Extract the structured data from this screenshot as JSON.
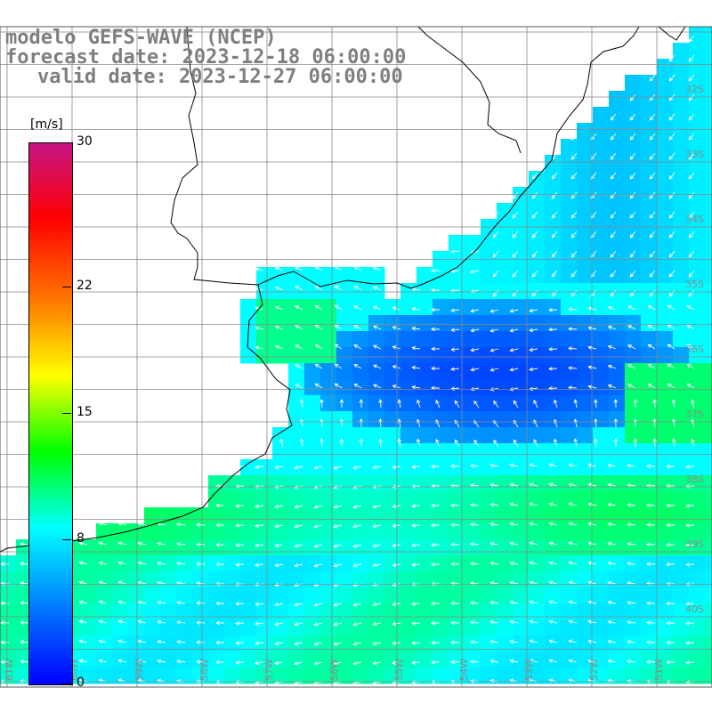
{
  "title": {
    "line1": "modelo GEFS-WAVE (NCEP)",
    "line2": "forecast date: 2023-12-18 06:00:00",
    "line3": "valid date: 2023-12-27 06:00:00"
  },
  "colorbar": {
    "unit": "[m/s]",
    "ticks": [
      {
        "label": "30",
        "value": 30
      },
      {
        "label": "22",
        "value": 22
      },
      {
        "label": "15",
        "value": 15
      },
      {
        "label": "8",
        "value": 8
      },
      {
        "label": "0",
        "value": 0
      }
    ],
    "colors": [
      "#0000ff",
      "#0077ff",
      "#00ffff",
      "#00ff00",
      "#ffff00",
      "#ff7700",
      "#ff0000",
      "#c71585"
    ]
  },
  "grid": {
    "lat_labels": [
      "32S",
      "33S",
      "34S",
      "35S",
      "36S",
      "37S",
      "38S",
      "39S",
      "40S"
    ],
    "lon_labels": [
      "61W",
      "60W",
      "59W",
      "58W",
      "57W",
      "56W",
      "55W",
      "54W",
      "53W",
      "52W",
      "51W"
    ]
  },
  "map_layers": {
    "land_color": "#ffffff",
    "coastline_color": "#000000",
    "gridline_color": "#888888",
    "arrow_color": "#ffffff"
  }
}
